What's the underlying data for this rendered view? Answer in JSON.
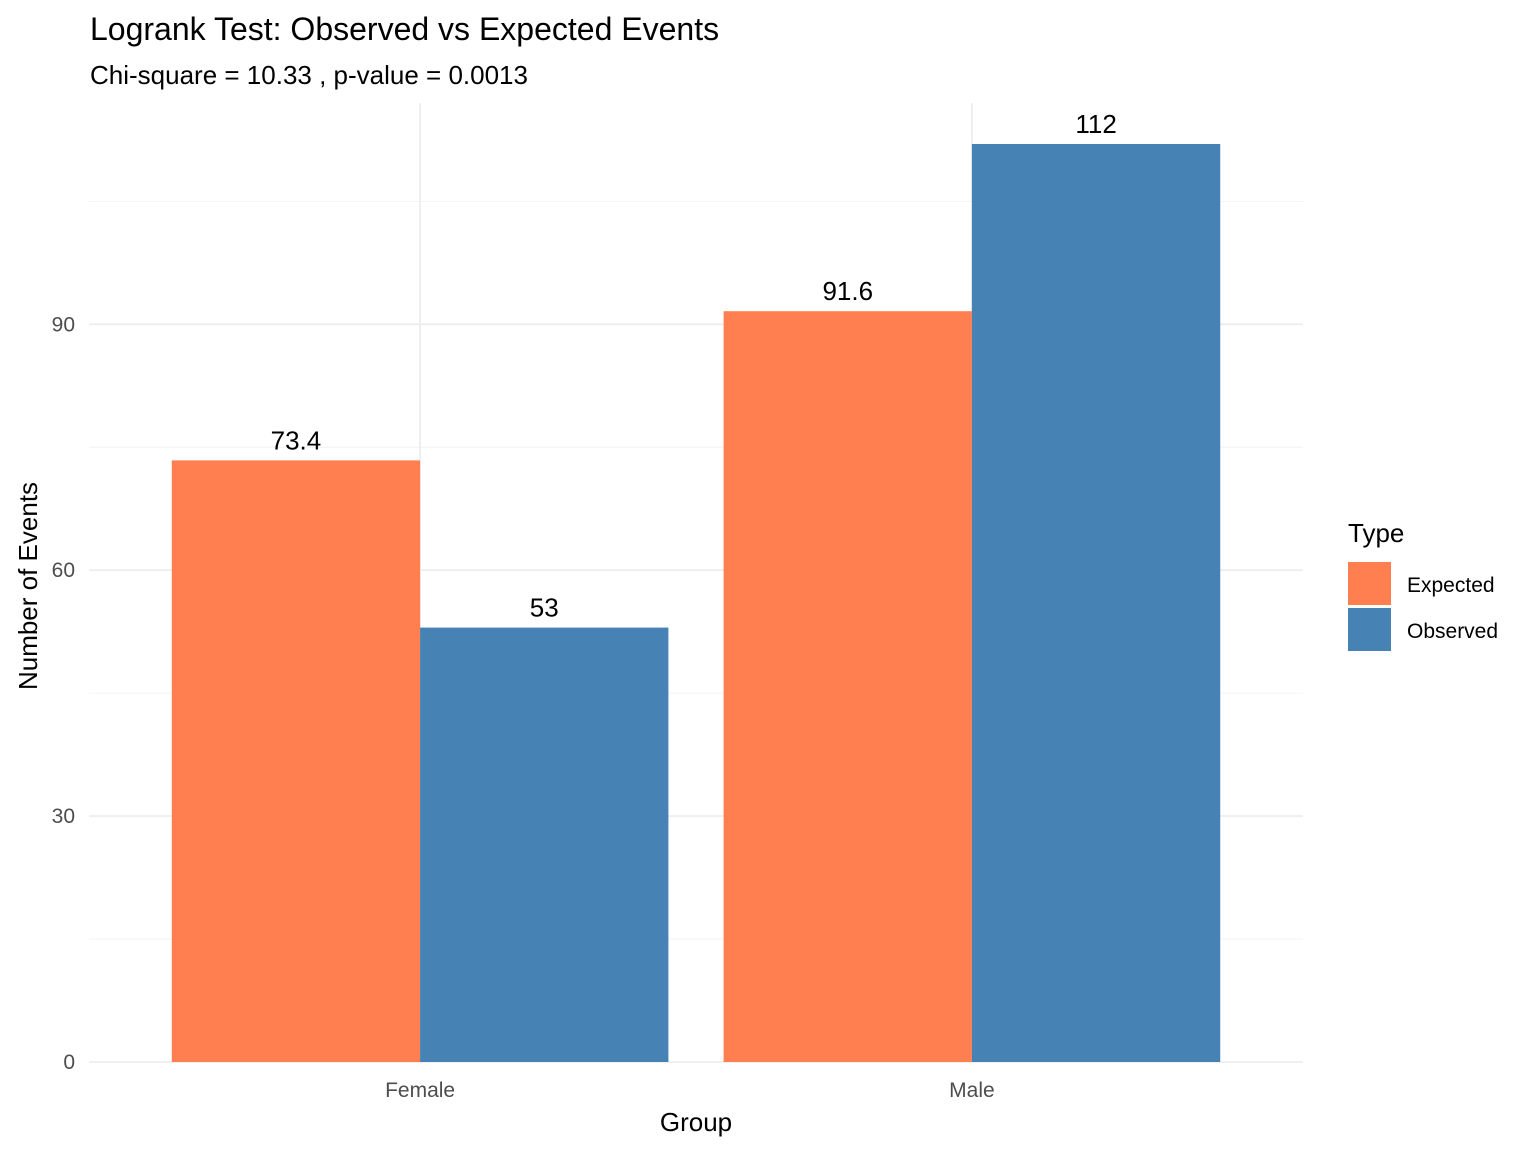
{
  "chart_data": {
    "type": "bar",
    "title": "Logrank Test: Observed vs Expected Events",
    "subtitle": "Chi-square = 10.33 , p-value = 0.0013",
    "xlabel": "Group",
    "ylabel": "Number of Events",
    "categories": [
      "Female",
      "Male"
    ],
    "series": [
      {
        "name": "Expected",
        "color": "#FF7F50",
        "values": [
          73.4,
          91.6
        ],
        "labels": [
          "73.4",
          "91.6"
        ]
      },
      {
        "name": "Observed",
        "color": "#4682B4",
        "values": [
          53,
          112
        ],
        "labels": [
          "53",
          "112"
        ]
      }
    ],
    "ylim": [
      0,
      117
    ],
    "yticks": [
      0,
      30,
      60,
      90
    ],
    "ytick_labels": [
      "0",
      "30",
      "60",
      "90"
    ],
    "grid": true,
    "legend": {
      "title": "Type",
      "position": "right"
    }
  }
}
